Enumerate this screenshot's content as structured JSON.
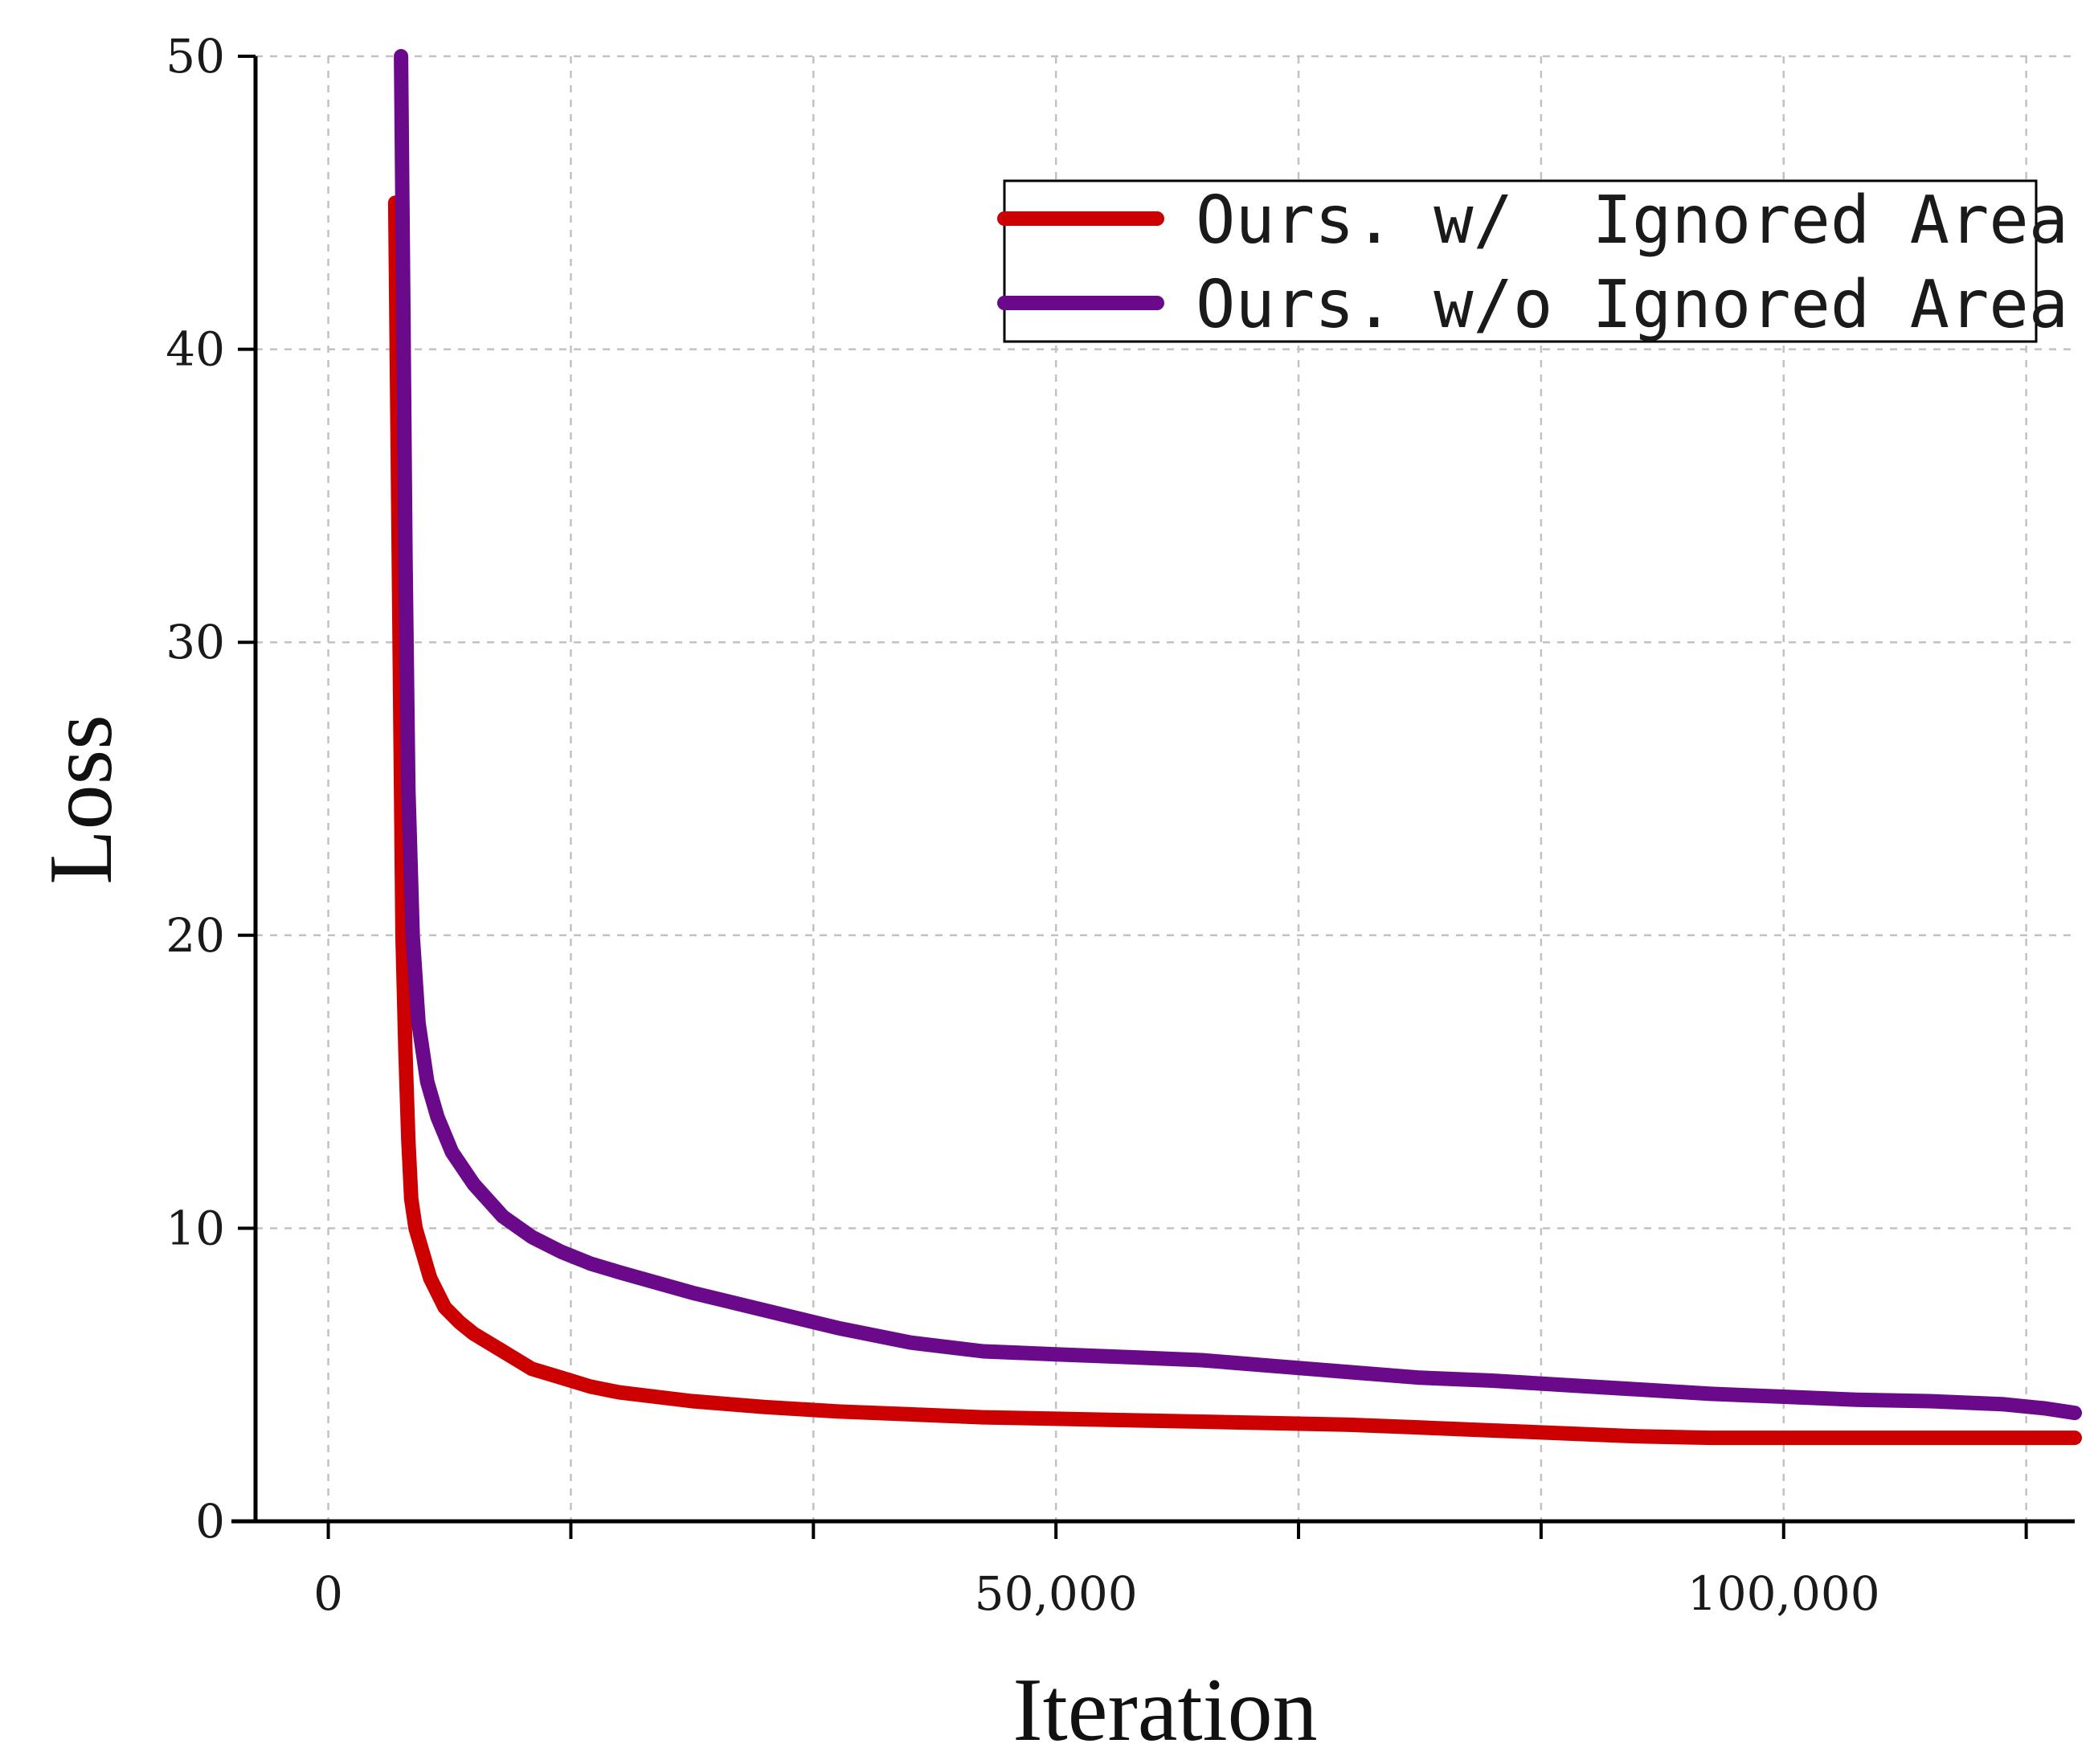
{
  "chart_data": {
    "type": "line",
    "xlabel": "Iteration",
    "ylabel": "Loss",
    "xlim": [
      -5000,
      120000
    ],
    "ylim": [
      0,
      50
    ],
    "xticks": [
      0,
      50000,
      100000
    ],
    "xtick_labels": [
      "0",
      "50,000",
      "100,000"
    ],
    "x_minor_ticks": [
      16667,
      33333,
      66667,
      83333,
      116667
    ],
    "yticks": [
      0,
      10,
      20,
      30,
      40,
      50
    ],
    "ytick_labels": [
      "0",
      "10",
      "20",
      "30",
      "40",
      "50"
    ],
    "grid": true,
    "legend_position": "top-right",
    "series": [
      {
        "name": "Ours. w/  Ignored Area",
        "color": "#cc0000",
        "points": [
          [
            4600,
            45
          ],
          [
            4900,
            30
          ],
          [
            5100,
            20
          ],
          [
            5300,
            16
          ],
          [
            5500,
            13
          ],
          [
            5700,
            11
          ],
          [
            6000,
            10
          ],
          [
            7000,
            8.3
          ],
          [
            8000,
            7.3
          ],
          [
            9000,
            6.8
          ],
          [
            10000,
            6.4
          ],
          [
            12000,
            5.8
          ],
          [
            14000,
            5.2
          ],
          [
            16000,
            4.9
          ],
          [
            18000,
            4.6
          ],
          [
            20000,
            4.4
          ],
          [
            25000,
            4.1
          ],
          [
            30000,
            3.9
          ],
          [
            35000,
            3.75
          ],
          [
            40000,
            3.65
          ],
          [
            45000,
            3.55
          ],
          [
            50000,
            3.5
          ],
          [
            55000,
            3.45
          ],
          [
            60000,
            3.4
          ],
          [
            65000,
            3.35
          ],
          [
            70000,
            3.3
          ],
          [
            75000,
            3.2
          ],
          [
            80000,
            3.1
          ],
          [
            85000,
            3.0
          ],
          [
            90000,
            2.9
          ],
          [
            95000,
            2.85
          ],
          [
            100000,
            2.85
          ],
          [
            110000,
            2.85
          ],
          [
            120000,
            2.85
          ]
        ]
      },
      {
        "name": "Ours. w/o Ignored Area",
        "color": "#6a0a8a",
        "points": [
          [
            5000,
            50
          ],
          [
            5150,
            42
          ],
          [
            5300,
            33
          ],
          [
            5500,
            25
          ],
          [
            5800,
            20
          ],
          [
            6200,
            17
          ],
          [
            6800,
            15
          ],
          [
            7500,
            13.8
          ],
          [
            8500,
            12.6
          ],
          [
            10000,
            11.5
          ],
          [
            12000,
            10.4
          ],
          [
            14000,
            9.7
          ],
          [
            16000,
            9.2
          ],
          [
            18000,
            8.8
          ],
          [
            20000,
            8.5
          ],
          [
            25000,
            7.8
          ],
          [
            30000,
            7.2
          ],
          [
            35000,
            6.6
          ],
          [
            40000,
            6.1
          ],
          [
            45000,
            5.8
          ],
          [
            50000,
            5.7
          ],
          [
            55000,
            5.6
          ],
          [
            60000,
            5.5
          ],
          [
            65000,
            5.3
          ],
          [
            70000,
            5.1
          ],
          [
            75000,
            4.9
          ],
          [
            80000,
            4.8
          ],
          [
            85000,
            4.65
          ],
          [
            90000,
            4.5
          ],
          [
            95000,
            4.35
          ],
          [
            100000,
            4.25
          ],
          [
            105000,
            4.15
          ],
          [
            110000,
            4.1
          ],
          [
            115000,
            4.0
          ],
          [
            118000,
            3.85
          ],
          [
            120000,
            3.7
          ]
        ]
      }
    ]
  }
}
